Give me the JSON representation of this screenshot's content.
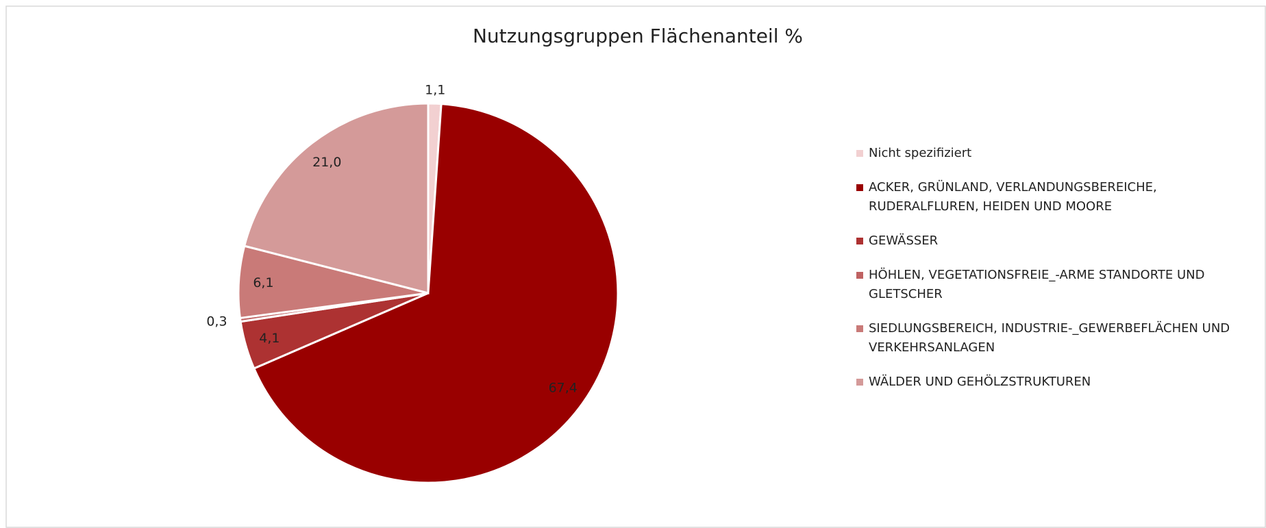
{
  "chart_data": {
    "type": "pie",
    "title": "Nutzungsgruppen Flächenanteil %",
    "categories": [
      "Nicht spezifiziert",
      "ACKER, GRÜNLAND, VERLANDUNGSBEREICHE, RUDERALFLUREN, HEIDEN UND MOORE",
      "GEWÄSSER",
      "HÖHLEN, VEGETATIONSFREIE_-ARME STANDORTE UND GLETSCHER",
      "SIEDLUNGSBEREICH, INDUSTRIE-_GEWERBEFLÄCHEN UND VERKEHRSANLAGEN",
      "WÄLDER UND GEHÖLZSTRUKTUREN"
    ],
    "values": [
      1.1,
      67.4,
      4.1,
      0.3,
      6.1,
      21.0
    ],
    "value_labels": [
      "1,1",
      "67,4",
      "4,1",
      "0,3",
      "6,1",
      "21,0"
    ],
    "colors": [
      "#f2d0d1",
      "#990000",
      "#ad3232",
      "#bf6262",
      "#c97a78",
      "#d49a99"
    ],
    "legend": "right"
  }
}
